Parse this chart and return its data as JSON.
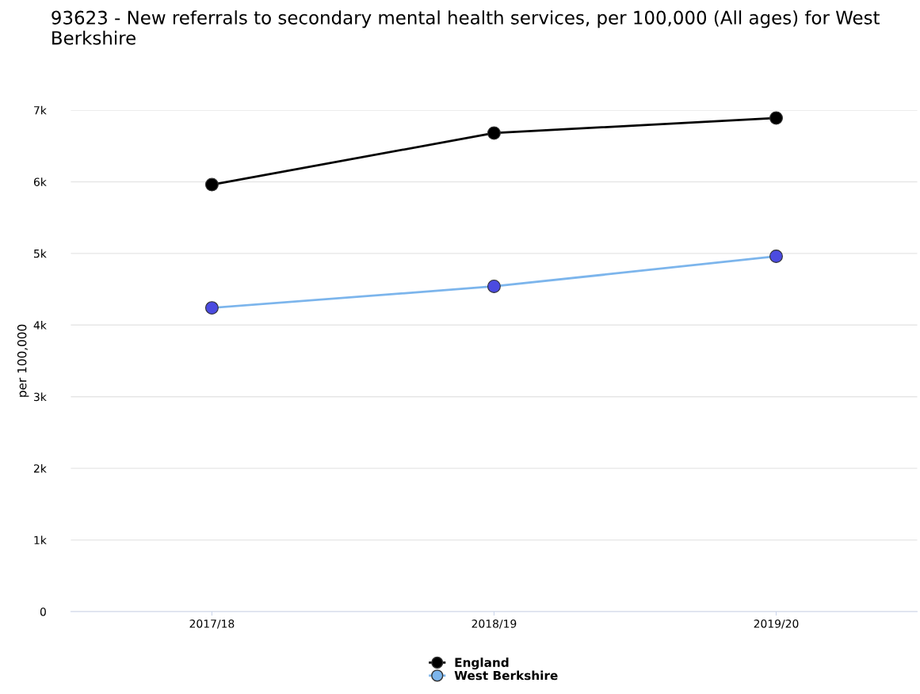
{
  "chart_data": {
    "type": "line",
    "title": "93623 - New referrals to secondary mental health services, per 100,000 (All ages) for West Berkshire",
    "ylabel": "per 100,000",
    "categories": [
      "2017/18",
      "2018/19",
      "2019/20"
    ],
    "series": [
      {
        "name": "England",
        "color": "#000000",
        "values": [
          5960,
          6680,
          6890
        ]
      },
      {
        "name": "West Berkshire",
        "color": "#7cb5ec",
        "colors": [
          "#4b4be0",
          "#4b4be0",
          "#4b4be0"
        ],
        "values": [
          4240,
          4540,
          4960
        ]
      }
    ],
    "ylim": [
      0,
      7000
    ],
    "yticks": [
      {
        "value": 0,
        "label": "0"
      },
      {
        "value": 1000,
        "label": "1k"
      },
      {
        "value": 2000,
        "label": "2k"
      },
      {
        "value": 3000,
        "label": "3k"
      },
      {
        "value": 4000,
        "label": "4k"
      },
      {
        "value": 5000,
        "label": "5k"
      },
      {
        "value": 6000,
        "label": "6k"
      },
      {
        "value": 7000,
        "label": "7k"
      }
    ],
    "grid": "y",
    "legend": "bottom",
    "marker": "circle",
    "line_style": "solid"
  }
}
